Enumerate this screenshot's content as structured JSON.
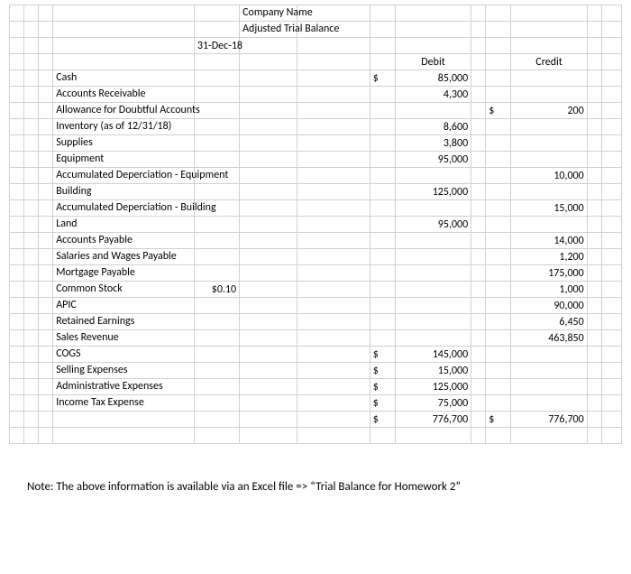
{
  "header": {
    "company": "Company Name",
    "report": "Adjusted Trial Balance",
    "date": "31-Dec-18"
  },
  "columns": {
    "debit": "Debit",
    "credit": "Credit",
    "sym": "$"
  },
  "rows": [
    {
      "label": "Cash",
      "note": "",
      "dsym": "$",
      "debit": "85,000",
      "csym": "",
      "credit": ""
    },
    {
      "label": "Accounts Receivable",
      "note": "",
      "dsym": "",
      "debit": "4,300",
      "csym": "",
      "credit": ""
    },
    {
      "label": "Allowance for Doubtful Accounts",
      "note": "",
      "dsym": "",
      "debit": "",
      "csym": "$",
      "credit": "200"
    },
    {
      "label": "Inventory (as of 12/31/18)",
      "note": "",
      "dsym": "",
      "debit": "8,600",
      "csym": "",
      "credit": ""
    },
    {
      "label": "Supplies",
      "note": "",
      "dsym": "",
      "debit": "3,800",
      "csym": "",
      "credit": ""
    },
    {
      "label": "Equipment",
      "note": "",
      "dsym": "",
      "debit": "95,000",
      "csym": "",
      "credit": ""
    },
    {
      "label": "Accumulated Deperciation - Equipment",
      "note": "",
      "dsym": "",
      "debit": "",
      "csym": "",
      "credit": "10,000"
    },
    {
      "label": "Building",
      "note": "",
      "dsym": "",
      "debit": "125,000",
      "csym": "",
      "credit": ""
    },
    {
      "label": "Accumulated Deperciation - Building",
      "note": "",
      "dsym": "",
      "debit": "",
      "csym": "",
      "credit": "15,000"
    },
    {
      "label": "Land",
      "note": "",
      "dsym": "",
      "debit": "95,000",
      "csym": "",
      "credit": ""
    },
    {
      "label": "Accounts Payable",
      "note": "",
      "dsym": "",
      "debit": "",
      "csym": "",
      "credit": "14,000"
    },
    {
      "label": "Salaries and Wages Payable",
      "note": "",
      "dsym": "",
      "debit": "",
      "csym": "",
      "credit": "1,200"
    },
    {
      "label": "Mortgage Payable",
      "note": "",
      "dsym": "",
      "debit": "",
      "csym": "",
      "credit": "175,000"
    },
    {
      "label": "Common Stock",
      "note": "$0.10",
      "dsym": "",
      "debit": "",
      "csym": "",
      "credit": "1,000"
    },
    {
      "label": "APIC",
      "note": "",
      "dsym": "",
      "debit": "",
      "csym": "",
      "credit": "90,000"
    },
    {
      "label": "Retained Earnings",
      "note": "",
      "dsym": "",
      "debit": "",
      "csym": "",
      "credit": "6,450"
    },
    {
      "label": "Sales Revenue",
      "note": "",
      "dsym": "",
      "debit": "",
      "csym": "",
      "credit": "463,850"
    },
    {
      "label": "COGS",
      "note": "",
      "dsym": "$",
      "debit": "145,000",
      "csym": "",
      "credit": ""
    },
    {
      "label": "Selling Expenses",
      "note": "",
      "dsym": "$",
      "debit": "15,000",
      "csym": "",
      "credit": ""
    },
    {
      "label": "Administrative Expenses",
      "note": "",
      "dsym": "$",
      "debit": "125,000",
      "csym": "",
      "credit": ""
    },
    {
      "label": "Income Tax Expense",
      "note": "",
      "dsym": "$",
      "debit": "75,000",
      "csym": "",
      "credit": ""
    }
  ],
  "totals": {
    "dsym": "$",
    "debit": "776,700",
    "csym": "$",
    "credit": "776,700"
  },
  "note": "Note: The above information is available via an Excel file => “Trial Balance for Homework 2”"
}
